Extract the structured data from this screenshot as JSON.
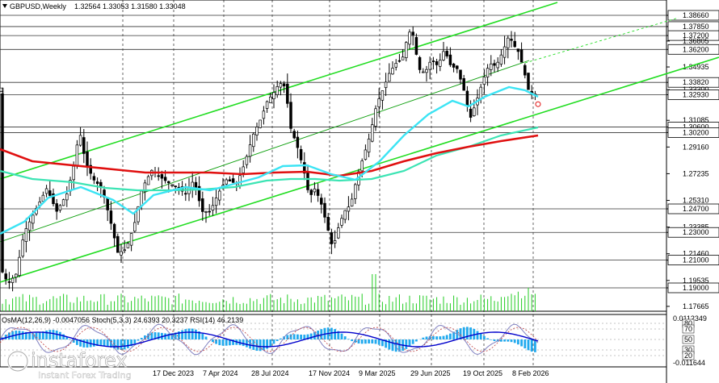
{
  "header": {
    "symbol": "GBPUSD,Weekly",
    "ohlc": "1.32564 1.33053 1.31580 1.33048"
  },
  "subwindow": {
    "label": "OsMA(12,26,9) -0.0047056  Stoch(5,3,3) 24.6393 20.3237  RSI(14) 46.2139",
    "scale_top": "0.0112349",
    "scale_bottom": "-0.011644",
    "levels": [
      "80",
      "70",
      "50",
      "30",
      "20"
    ]
  },
  "logo": {
    "brand": "instaforex",
    "tagline": "Instant Forex Trading"
  },
  "chart_data": {
    "type": "candlestick",
    "title": "GBPUSD,Weekly",
    "x_ticks": [
      "17 Dec 2023",
      "7 Apr 2024",
      "28 Jul 2024",
      "17 Nov 2024",
      "9 Mar 2025",
      "29 Jun 2025",
      "19 Oct 2025",
      "8 Feb 2026"
    ],
    "y_ticks": [
      "1.38660",
      "1.37850",
      "1.37200",
      "1.36805",
      "1.36200",
      "1.34935",
      "1.33820",
      "1.33300",
      "1.32930",
      "1.31085",
      "1.30600",
      "1.30200",
      "1.29160",
      "1.27235",
      "1.25310",
      "1.24700",
      "1.23385",
      "1.23000",
      "1.21460",
      "1.21000",
      "1.19535",
      "1.19000",
      "1.17665"
    ],
    "highlighted_levels": [
      "1.38660",
      "1.37850",
      "1.37200",
      "1.36200",
      "1.33820",
      "1.32930",
      "1.30600",
      "1.30200",
      "1.24700",
      "1.23000",
      "1.21000",
      "1.19000"
    ],
    "price_highlight_labels": [
      "1.33300",
      "1.33048"
    ],
    "ylim": [
      1.17665,
      1.398
    ],
    "last_close": 1.33048,
    "series": [
      {
        "name": "",
        "color": "#3ce4f4",
        "kind": "ma-fast"
      },
      {
        "name": "",
        "color": "#3ce4b4",
        "kind": "ma-mid"
      },
      {
        "name": "",
        "color": "#e01010",
        "kind": "ma-slow"
      }
    ],
    "channels": "green",
    "grid": true
  }
}
